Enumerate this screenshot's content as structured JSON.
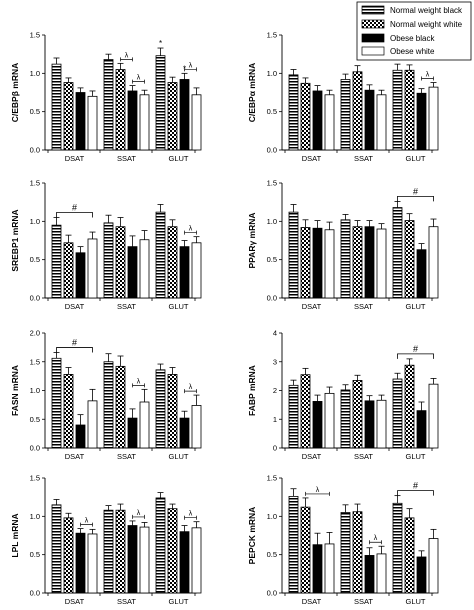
{
  "legend": {
    "items": [
      {
        "label": "Normal weight black",
        "pattern": "hstripe"
      },
      {
        "label": "Normal weight white",
        "pattern": "check"
      },
      {
        "label": "Obese black",
        "pattern": "solid"
      },
      {
        "label": "Obese white",
        "pattern": "empty"
      }
    ]
  },
  "colors": {
    "bar_fill": "#000000",
    "bar_empty": "#ffffff",
    "axis": "#000000"
  },
  "chart_data": [
    {
      "type": "bar",
      "ylabel": "C/EBPβ mRNA",
      "categories": [
        "DSAT",
        "SSAT",
        "GLUT"
      ],
      "ylim": [
        0,
        1.5
      ],
      "yticks": [
        "0.0",
        "0.5",
        "1.0",
        "1.5"
      ],
      "values": [
        [
          1.12,
          0.88,
          0.75,
          0.7
        ],
        [
          1.18,
          1.05,
          0.77,
          0.72
        ],
        [
          1.23,
          0.88,
          0.92,
          0.72
        ]
      ],
      "errors": [
        [
          0.08,
          0.06,
          0.06,
          0.07
        ],
        [
          0.07,
          0.08,
          0.07,
          0.06
        ],
        [
          0.1,
          0.07,
          0.08,
          0.09
        ]
      ],
      "annotations": [
        {
          "cat": 1,
          "from": 2,
          "to": 3,
          "label": "λ"
        },
        {
          "cat": 2,
          "from": 2,
          "to": 3,
          "label": "λ"
        },
        {
          "cat": 1,
          "from": 1,
          "to": 2,
          "label": "λ"
        },
        {
          "cat": 2,
          "bar": 0,
          "label": "*"
        },
        {
          "cat": 2,
          "bar": 2,
          "label": "*"
        }
      ]
    },
    {
      "type": "bar",
      "ylabel": "C/EBPα mRNA",
      "categories": [
        "DSAT",
        "SSAT",
        "GLUT"
      ],
      "ylim": [
        0,
        1.5
      ],
      "yticks": [
        "0.0",
        "0.5",
        "1.0",
        "1.5"
      ],
      "values": [
        [
          0.98,
          0.87,
          0.77,
          0.72
        ],
        [
          0.92,
          1.02,
          0.78,
          0.72
        ],
        [
          1.04,
          1.04,
          0.74,
          0.82
        ]
      ],
      "errors": [
        [
          0.07,
          0.07,
          0.07,
          0.06
        ],
        [
          0.07,
          0.08,
          0.07,
          0.06
        ],
        [
          0.08,
          0.07,
          0.06,
          0.06
        ]
      ],
      "annotations": [
        {
          "cat": 2,
          "from": 2,
          "to": 3,
          "label": "λ"
        }
      ]
    },
    {
      "type": "bar",
      "ylabel": "SREBP1 mRNA",
      "categories": [
        "DSAT",
        "SSAT",
        "GLUT"
      ],
      "ylim": [
        0,
        1.5
      ],
      "yticks": [
        "0.0",
        "0.5",
        "1.0",
        "1.5"
      ],
      "values": [
        [
          0.95,
          0.72,
          0.59,
          0.77
        ],
        [
          0.98,
          0.93,
          0.67,
          0.76
        ],
        [
          1.12,
          0.93,
          0.67,
          0.72
        ]
      ],
      "errors": [
        [
          0.1,
          0.1,
          0.08,
          0.09
        ],
        [
          0.1,
          0.12,
          0.14,
          0.12
        ],
        [
          0.1,
          0.09,
          0.08,
          0.08
        ]
      ],
      "annotations": [
        {
          "span": [
            0,
            0,
            0,
            3
          ],
          "label": "#"
        },
        {
          "cat": 2,
          "from": 2,
          "to": 3,
          "label": "λ"
        }
      ]
    },
    {
      "type": "bar",
      "ylabel": "PPARγ mRNA",
      "categories": [
        "DSAT",
        "SSAT",
        "GLUT"
      ],
      "ylim": [
        0,
        1.5
      ],
      "yticks": [
        "0.0",
        "0.5",
        "1.0",
        "1.5"
      ],
      "values": [
        [
          1.12,
          0.92,
          0.91,
          0.89
        ],
        [
          1.02,
          0.93,
          0.93,
          0.9
        ],
        [
          1.18,
          1.01,
          0.63,
          0.93
        ]
      ],
      "errors": [
        [
          0.1,
          0.1,
          0.1,
          0.1
        ],
        [
          0.07,
          0.08,
          0.08,
          0.07
        ],
        [
          0.08,
          0.09,
          0.08,
          0.1
        ]
      ],
      "annotations": [
        {
          "span": [
            2,
            0,
            2,
            3
          ],
          "label": "#"
        }
      ]
    },
    {
      "type": "bar",
      "ylabel": "FASN mRNA",
      "categories": [
        "DSAT",
        "SSAT",
        "GLUT"
      ],
      "ylim": [
        0,
        2.0
      ],
      "yticks": [
        "0.0",
        "0.5",
        "1.0",
        "1.5",
        "2.0"
      ],
      "values": [
        [
          1.56,
          1.28,
          0.4,
          0.82
        ],
        [
          1.5,
          1.42,
          0.52,
          0.8
        ],
        [
          1.36,
          1.28,
          0.52,
          0.74
        ]
      ],
      "errors": [
        [
          0.1,
          0.12,
          0.18,
          0.2
        ],
        [
          0.14,
          0.18,
          0.16,
          0.22
        ],
        [
          0.1,
          0.12,
          0.12,
          0.18
        ]
      ],
      "annotations": [
        {
          "span": [
            0,
            0,
            0,
            3
          ],
          "label": "#"
        },
        {
          "cat": 1,
          "from": 2,
          "to": 3,
          "label": "λ"
        },
        {
          "cat": 2,
          "from": 2,
          "to": 3,
          "label": "λ"
        }
      ]
    },
    {
      "type": "bar",
      "ylabel": "FABP mRNA",
      "categories": [
        "DSAT",
        "SSAT",
        "GLUT"
      ],
      "ylim": [
        0,
        4
      ],
      "yticks": [
        "0",
        "1",
        "2",
        "3",
        "4"
      ],
      "values": [
        [
          2.18,
          2.55,
          1.62,
          1.9
        ],
        [
          2.02,
          2.35,
          1.64,
          1.66
        ],
        [
          2.4,
          2.88,
          1.3,
          2.22
        ]
      ],
      "errors": [
        [
          0.18,
          0.22,
          0.22,
          0.22
        ],
        [
          0.18,
          0.18,
          0.18,
          0.18
        ],
        [
          0.2,
          0.22,
          0.3,
          0.2
        ]
      ],
      "annotations": [
        {
          "span": [
            2,
            0,
            2,
            3
          ],
          "label": "#"
        }
      ]
    },
    {
      "type": "bar",
      "ylabel": "LPL mRNA",
      "categories": [
        "DSAT",
        "SSAT",
        "GLUT"
      ],
      "ylim": [
        0,
        1.5
      ],
      "yticks": [
        "0.0",
        "0.5",
        "1.0",
        "1.5"
      ],
      "values": [
        [
          1.15,
          0.98,
          0.78,
          0.77
        ],
        [
          1.08,
          1.08,
          0.88,
          0.86
        ],
        [
          1.24,
          1.1,
          0.8,
          0.85
        ]
      ],
      "errors": [
        [
          0.07,
          0.06,
          0.06,
          0.06
        ],
        [
          0.06,
          0.08,
          0.06,
          0.06
        ],
        [
          0.07,
          0.06,
          0.08,
          0.08
        ]
      ],
      "annotations": [
        {
          "cat": 0,
          "from": 2,
          "to": 3,
          "label": "λ"
        },
        {
          "cat": 1,
          "from": 2,
          "to": 3,
          "label": "λ"
        },
        {
          "cat": 2,
          "from": 2,
          "to": 3,
          "label": "λ"
        }
      ]
    },
    {
      "type": "bar",
      "ylabel": "PEPCK mRNA",
      "categories": [
        "DSAT",
        "SSAT",
        "GLUT"
      ],
      "ylim": [
        0,
        1.5
      ],
      "yticks": [
        "0.0",
        "0.5",
        "1.0",
        "1.5"
      ],
      "values": [
        [
          1.26,
          1.12,
          0.63,
          0.64
        ],
        [
          1.05,
          1.06,
          0.49,
          0.51
        ],
        [
          1.17,
          0.98,
          0.47,
          0.71
        ]
      ],
      "errors": [
        [
          0.1,
          0.12,
          0.15,
          0.15
        ],
        [
          0.1,
          0.1,
          0.1,
          0.1
        ],
        [
          0.1,
          0.12,
          0.08,
          0.12
        ]
      ],
      "annotations": [
        {
          "cat": 0,
          "from": 1,
          "to": 3,
          "label": "λ"
        },
        {
          "cat": 1,
          "from": 2,
          "to": 3,
          "label": "λ"
        },
        {
          "span": [
            2,
            0,
            2,
            3
          ],
          "label": "#"
        }
      ]
    }
  ]
}
